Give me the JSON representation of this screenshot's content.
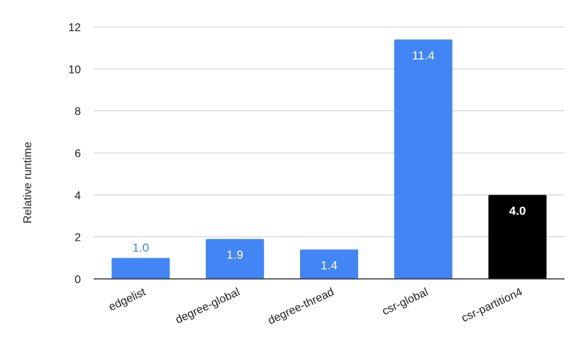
{
  "chart_data": {
    "type": "bar",
    "categories": [
      "edgelist",
      "degree-global",
      "degree-thread",
      "csr-global",
      "csr-partition4"
    ],
    "values": [
      1.0,
      1.9,
      1.4,
      11.4,
      4.0
    ],
    "data_labels": [
      "1.0",
      "1.9",
      "1.4",
      "11.4",
      "4.0"
    ],
    "colors": [
      "#4285F4",
      "#4285F4",
      "#4285F4",
      "#4285F4",
      "#000000"
    ],
    "label_colors": [
      "#4285F4",
      "#ffffff",
      "#ffffff",
      "#ffffff",
      "#ffffff"
    ],
    "label_bold": [
      false,
      false,
      false,
      false,
      true
    ],
    "label_outside": [
      true,
      false,
      false,
      false,
      false
    ],
    "title": "",
    "xlabel": "",
    "ylabel": "Relative runtime",
    "ylim": [
      0,
      12
    ],
    "yticks": [
      0,
      2,
      4,
      6,
      8,
      10,
      12
    ],
    "ytick_labels": [
      "0",
      "2",
      "4",
      "6",
      "8",
      "10",
      "12"
    ],
    "grid": true,
    "gridline_color": "#cccccc",
    "axis_color": "#333333"
  }
}
